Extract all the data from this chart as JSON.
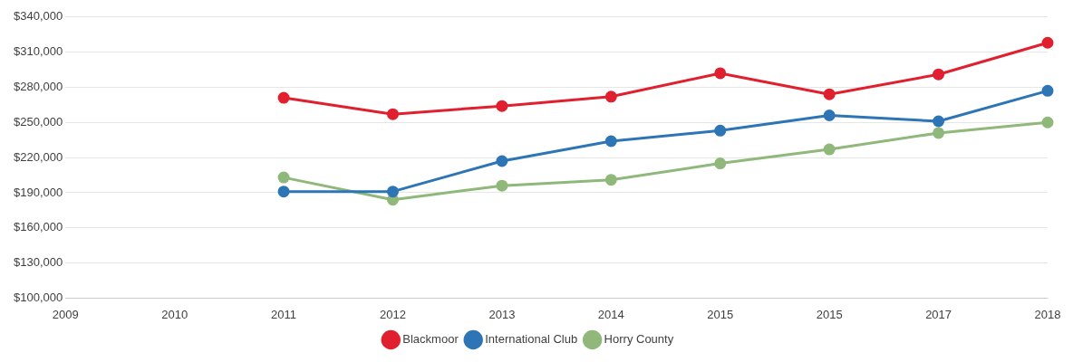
{
  "chart_data": {
    "type": "line",
    "categories": [
      "2009",
      "2010",
      "2011",
      "2012",
      "2013",
      "2014",
      "2015",
      "2015",
      "2017",
      "2018"
    ],
    "series": [
      {
        "name": "Blackmoor",
        "color": "#e0202f",
        "values": [
          null,
          null,
          271000,
          257000,
          264000,
          272000,
          292000,
          274000,
          291000,
          318000
        ]
      },
      {
        "name": "International Club",
        "color": "#2e75b6",
        "values": [
          null,
          null,
          191000,
          191000,
          217000,
          234000,
          243000,
          256000,
          251000,
          277000
        ]
      },
      {
        "name": "Horry County",
        "color": "#8fb87a",
        "values": [
          null,
          null,
          203000,
          184000,
          196000,
          201000,
          215000,
          227000,
          241000,
          250000
        ]
      }
    ],
    "ylim": [
      100000,
      340000
    ],
    "yticks": [
      {
        "value": 100000,
        "label": "$100,000"
      },
      {
        "value": 130000,
        "label": "$130,000"
      },
      {
        "value": 160000,
        "label": "$160,000"
      },
      {
        "value": 190000,
        "label": "$190,000"
      },
      {
        "value": 220000,
        "label": "$220,000"
      },
      {
        "value": 250000,
        "label": "$250,000"
      },
      {
        "value": 280000,
        "label": "$280,000"
      },
      {
        "value": 310000,
        "label": "$310,000"
      },
      {
        "value": 340000,
        "label": "$340,000"
      }
    ],
    "grid": "y",
    "legend": "bottom",
    "marker": "circle",
    "line_style": "solid"
  }
}
